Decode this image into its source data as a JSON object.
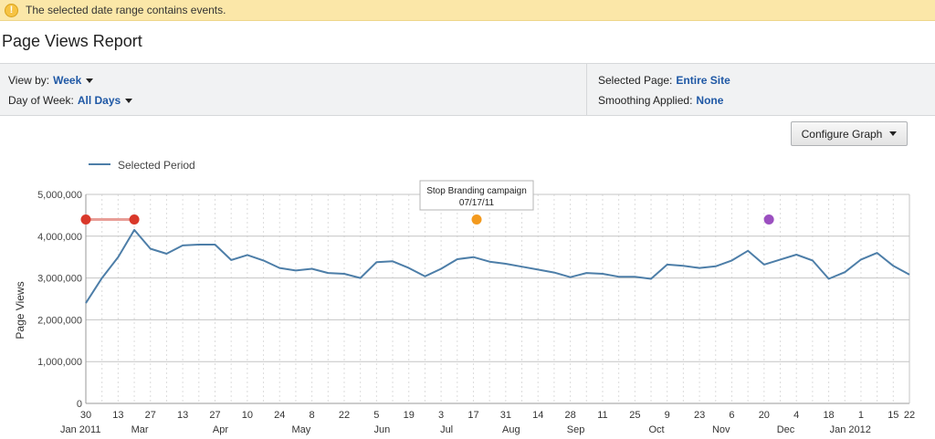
{
  "banner": {
    "icon": "warning-icon",
    "message": "The selected date range contains events."
  },
  "page": {
    "title": "Page Views Report"
  },
  "controls": {
    "view_by_label": "View by:",
    "view_by_value": "Week",
    "day_label": "Day of Week:",
    "day_value": "All Days",
    "selected_page_label": "Selected Page:",
    "selected_page_value": "Entire Site",
    "smoothing_label": "Smoothing Applied:",
    "smoothing_value": "None"
  },
  "configure_label": "Configure Graph",
  "colors": {
    "line": "#4d7ea8",
    "link": "#1f58a5",
    "event_red": "#d9382a",
    "event_orange": "#f39a1e",
    "event_purple": "#9b4fc0"
  },
  "chart_data": {
    "type": "line",
    "title": "",
    "legend": {
      "label": "Selected Period",
      "placement": "top-left"
    },
    "ylabel": "Page Views",
    "ylim": [
      0,
      5000000
    ],
    "y_ticks": [
      0,
      1000000,
      2000000,
      3000000,
      4000000,
      5000000
    ],
    "y_tick_labels": [
      "0",
      "1,000,000",
      "2,000,000",
      "3,000,000",
      "4,000,000",
      "5,000,000"
    ],
    "x_tick_labels": [
      "30",
      "13",
      "27",
      "13",
      "27",
      "10",
      "24",
      "8",
      "22",
      "5",
      "19",
      "3",
      "17",
      "31",
      "14",
      "28",
      "11",
      "25",
      "9",
      "23",
      "6",
      "20",
      "4",
      "18",
      "1",
      "15",
      "22"
    ],
    "x_month_labels": [
      "Jan 2011",
      "Mar",
      "Apr",
      "May",
      "Jun",
      "Jul",
      "Aug",
      "Sep",
      "Oct",
      "Nov",
      "Dec",
      "Jan 2012"
    ],
    "series": [
      {
        "values": [
          2400000,
          3000000,
          3500000,
          4150000,
          3700000,
          3580000,
          3780000,
          3800000,
          3800000,
          3430000,
          3550000,
          3420000,
          3240000,
          3180000,
          3220000,
          3120000,
          3100000,
          3000000,
          3380000,
          3400000,
          3240000,
          3040000,
          3220000,
          3450000,
          3500000,
          3390000,
          3340000,
          3270000,
          3200000,
          3130000,
          3020000,
          3120000,
          3100000,
          3030000,
          3030000,
          2980000,
          3320000,
          3290000,
          3240000,
          3280000,
          3420000,
          3650000,
          3320000,
          3440000,
          3560000,
          3420000,
          2980000,
          3140000,
          3440000,
          3600000,
          3290000,
          3080000
        ]
      }
    ],
    "events": [
      {
        "label": "",
        "color": "event_red",
        "range": [
          0,
          3
        ],
        "value": 4400000
      },
      {
        "label": "Stop Branding campaign",
        "date": "07/17/11",
        "color": "event_orange",
        "x": 24.2,
        "value": 4400000
      },
      {
        "label": "",
        "color": "event_purple",
        "x": 42.3,
        "value": 4400000
      }
    ]
  }
}
